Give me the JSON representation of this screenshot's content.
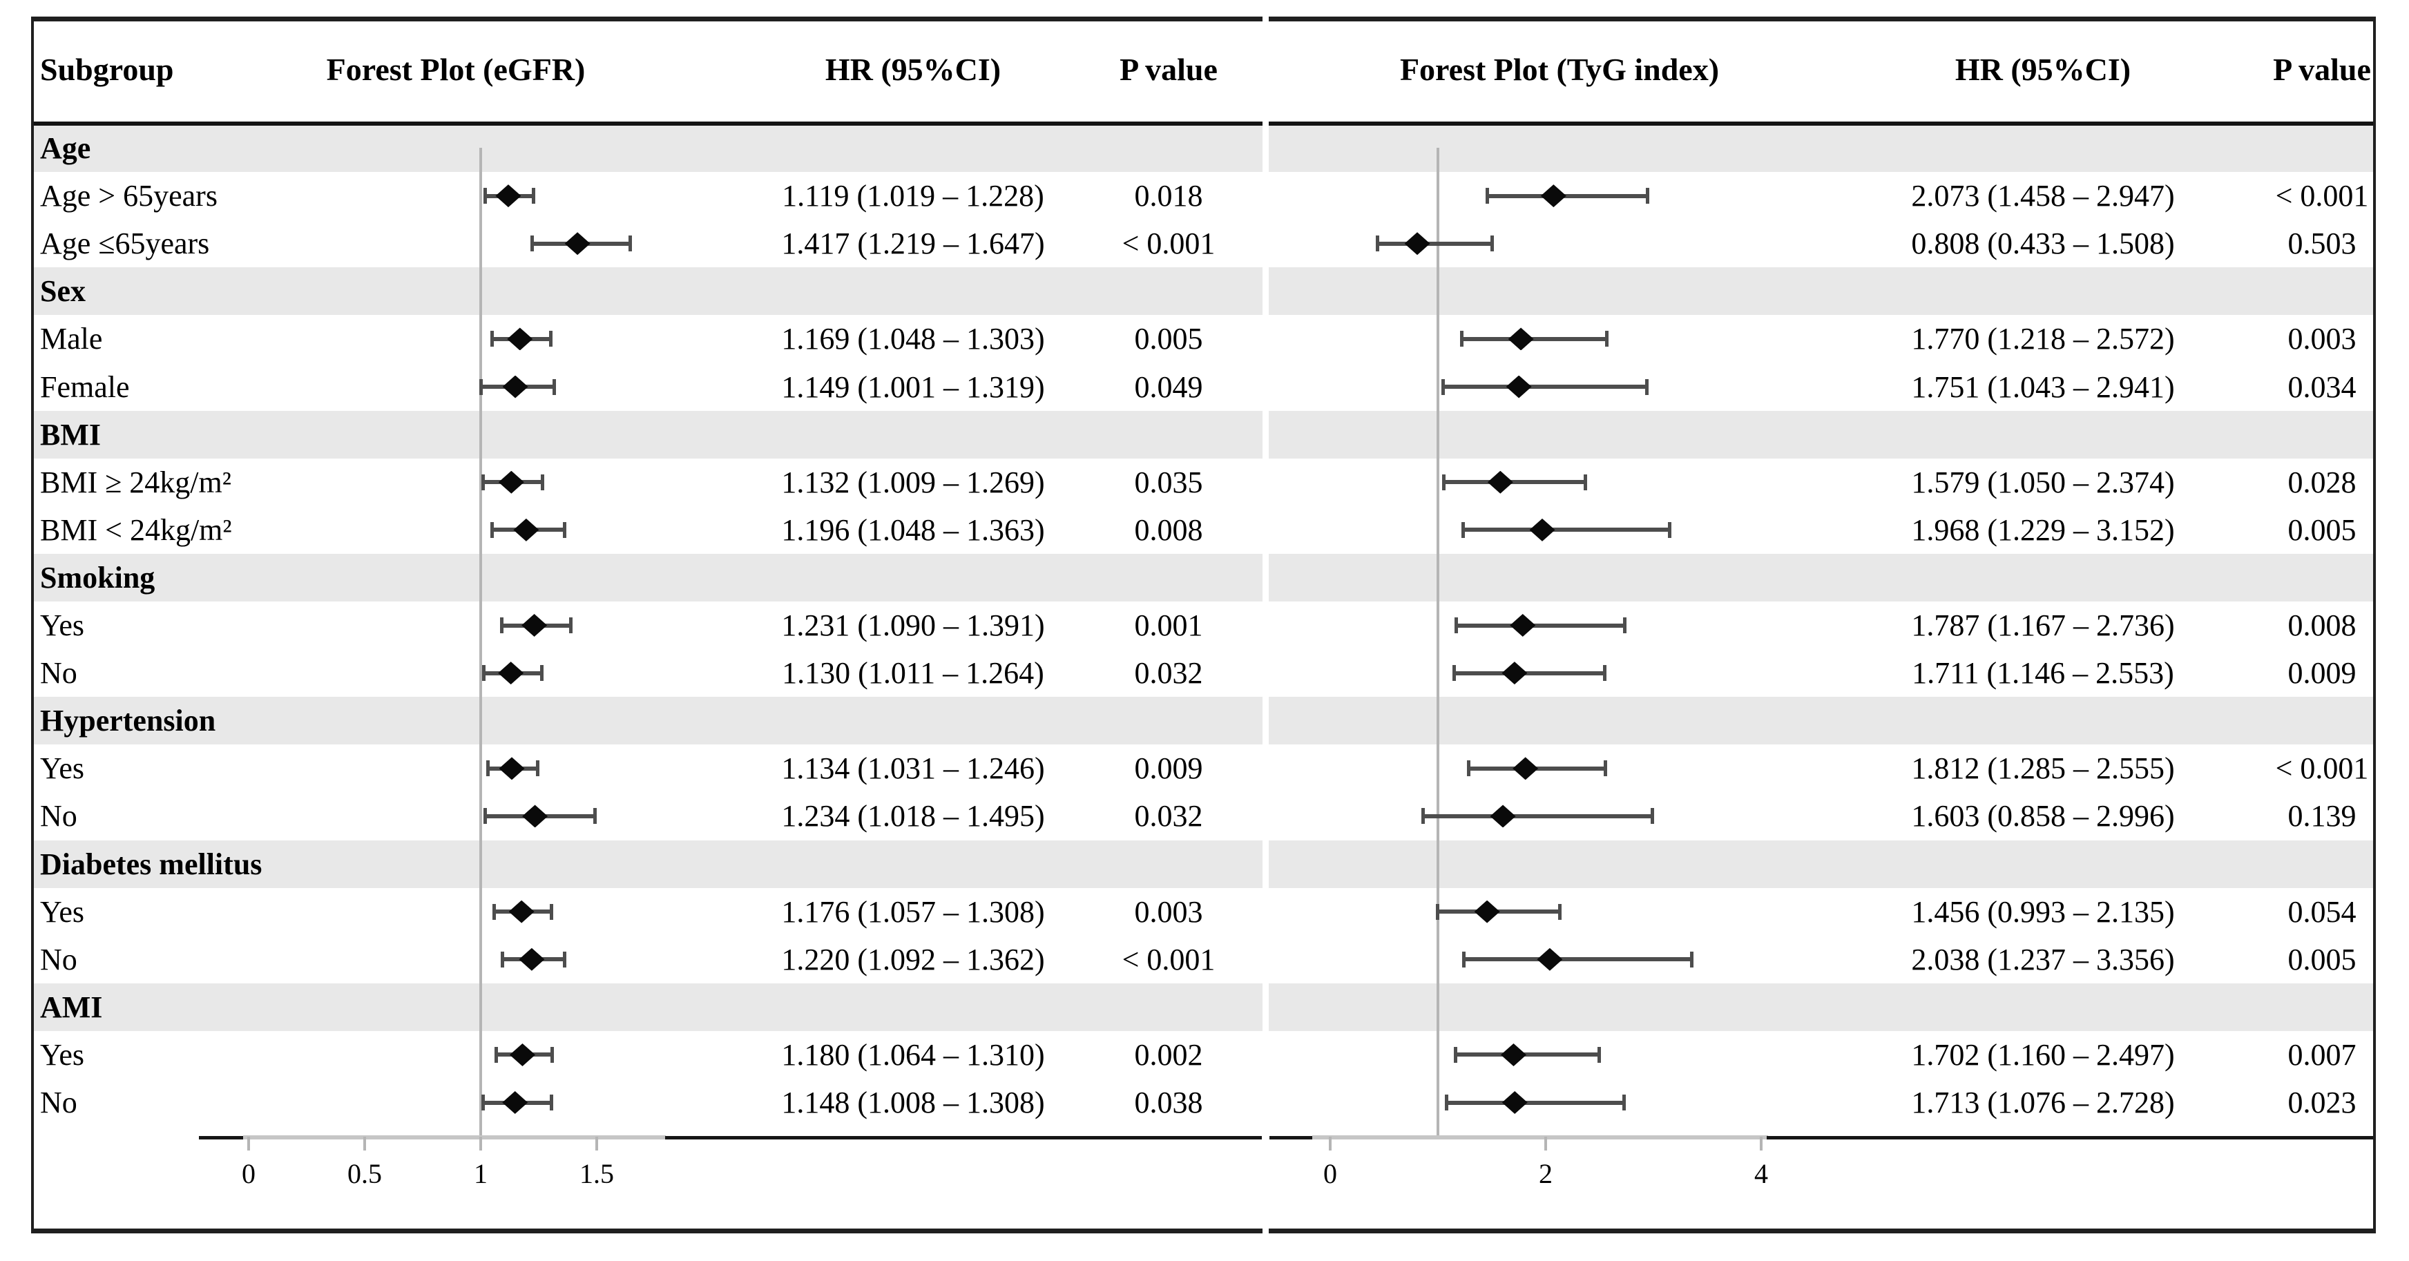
{
  "header": {
    "subgroup": "Subgroup",
    "egfr_title": "Forest Plot (eGFR)",
    "hr_left": "HR (95%CI)",
    "p_left": "P value",
    "tyg_title": "Forest Plot (TyG index)",
    "hr_right": "HR (95%CI)",
    "p_right": "P value"
  },
  "axes": {
    "egfr": {
      "ticks": [
        {
          "label": "0",
          "value": 0
        },
        {
          "label": "0.5",
          "value": 0.5
        },
        {
          "label": "1",
          "value": 1
        },
        {
          "label": "1.5",
          "value": 1.5
        }
      ],
      "ref_line": 1
    },
    "tyg": {
      "ticks": [
        {
          "label": "0",
          "value": 0
        },
        {
          "label": "2",
          "value": 2
        },
        {
          "label": "4",
          "value": 4
        }
      ],
      "ref_line": 1
    }
  },
  "sections": [
    {
      "label": "Age",
      "rows": [
        {
          "label": "Age > 65years",
          "egfr": {
            "hr": 1.119,
            "lo": 1.019,
            "hi": 1.228,
            "text": "1.119 (1.019 – 1.228)",
            "p": "0.018"
          },
          "tyg": {
            "hr": 2.073,
            "lo": 1.458,
            "hi": 2.947,
            "text": "2.073 (1.458 – 2.947)",
            "p": "< 0.001"
          }
        },
        {
          "label": "Age ≤65years",
          "egfr": {
            "hr": 1.417,
            "lo": 1.219,
            "hi": 1.647,
            "text": "1.417 (1.219 – 1.647)",
            "p": "< 0.001"
          },
          "tyg": {
            "hr": 0.808,
            "lo": 0.433,
            "hi": 1.508,
            "text": "0.808 (0.433 – 1.508)",
            "p": "0.503"
          }
        }
      ]
    },
    {
      "label": "Sex",
      "rows": [
        {
          "label": "Male",
          "egfr": {
            "hr": 1.169,
            "lo": 1.048,
            "hi": 1.303,
            "text": "1.169 (1.048 – 1.303)",
            "p": "0.005"
          },
          "tyg": {
            "hr": 1.77,
            "lo": 1.218,
            "hi": 2.572,
            "text": "1.770 (1.218 – 2.572)",
            "p": "0.003"
          }
        },
        {
          "label": "Female",
          "egfr": {
            "hr": 1.149,
            "lo": 1.001,
            "hi": 1.319,
            "text": "1.149 (1.001 – 1.319)",
            "p": "0.049"
          },
          "tyg": {
            "hr": 1.751,
            "lo": 1.043,
            "hi": 2.941,
            "text": "1.751 (1.043 – 2.941)",
            "p": "0.034"
          }
        }
      ]
    },
    {
      "label": "BMI",
      "rows": [
        {
          "label": "BMI ≥ 24kg/m²",
          "egfr": {
            "hr": 1.132,
            "lo": 1.009,
            "hi": 1.269,
            "text": "1.132 (1.009 – 1.269)",
            "p": "0.035"
          },
          "tyg": {
            "hr": 1.579,
            "lo": 1.05,
            "hi": 2.374,
            "text": "1.579 (1.050 – 2.374)",
            "p": "0.028"
          }
        },
        {
          "label": "BMI < 24kg/m²",
          "egfr": {
            "hr": 1.196,
            "lo": 1.048,
            "hi": 1.363,
            "text": "1.196 (1.048 – 1.363)",
            "p": "0.008"
          },
          "tyg": {
            "hr": 1.968,
            "lo": 1.229,
            "hi": 3.152,
            "text": "1.968 (1.229 – 3.152)",
            "p": "0.005"
          }
        }
      ]
    },
    {
      "label": "Smoking",
      "rows": [
        {
          "label": "Yes",
          "egfr": {
            "hr": 1.231,
            "lo": 1.09,
            "hi": 1.391,
            "text": "1.231 (1.090 – 1.391)",
            "p": "0.001"
          },
          "tyg": {
            "hr": 1.787,
            "lo": 1.167,
            "hi": 2.736,
            "text": "1.787 (1.167 – 2.736)",
            "p": "0.008"
          }
        },
        {
          "label": "No",
          "egfr": {
            "hr": 1.13,
            "lo": 1.011,
            "hi": 1.264,
            "text": "1.130 (1.011 – 1.264)",
            "p": "0.032"
          },
          "tyg": {
            "hr": 1.711,
            "lo": 1.146,
            "hi": 2.553,
            "text": "1.711 (1.146 – 2.553)",
            "p": "0.009"
          }
        }
      ]
    },
    {
      "label": "Hypertension",
      "rows": [
        {
          "label": "Yes",
          "egfr": {
            "hr": 1.134,
            "lo": 1.031,
            "hi": 1.246,
            "text": "1.134 (1.031 – 1.246)",
            "p": "0.009"
          },
          "tyg": {
            "hr": 1.812,
            "lo": 1.285,
            "hi": 2.555,
            "text": "1.812 (1.285 – 2.555)",
            "p": "< 0.001"
          }
        },
        {
          "label": "No",
          "egfr": {
            "hr": 1.234,
            "lo": 1.018,
            "hi": 1.495,
            "text": "1.234 (1.018 – 1.495)",
            "p": "0.032"
          },
          "tyg": {
            "hr": 1.603,
            "lo": 0.858,
            "hi": 2.996,
            "text": "1.603 (0.858 – 2.996)",
            "p": "0.139"
          }
        }
      ]
    },
    {
      "label": "Diabetes mellitus",
      "rows": [
        {
          "label": "Yes",
          "egfr": {
            "hr": 1.176,
            "lo": 1.057,
            "hi": 1.308,
            "text": "1.176 (1.057 – 1.308)",
            "p": "0.003"
          },
          "tyg": {
            "hr": 1.456,
            "lo": 0.993,
            "hi": 2.135,
            "text": "1.456 (0.993 – 2.135)",
            "p": "0.054"
          }
        },
        {
          "label": "No",
          "egfr": {
            "hr": 1.22,
            "lo": 1.092,
            "hi": 1.362,
            "text": "1.220 (1.092 – 1.362)",
            "p": "< 0.001"
          },
          "tyg": {
            "hr": 2.038,
            "lo": 1.237,
            "hi": 3.356,
            "text": "2.038 (1.237 – 3.356)",
            "p": "0.005"
          }
        }
      ]
    },
    {
      "label": "AMI",
      "rows": [
        {
          "label": "Yes",
          "egfr": {
            "hr": 1.18,
            "lo": 1.064,
            "hi": 1.31,
            "text": "1.180 (1.064 – 1.310)",
            "p": "0.002"
          },
          "tyg": {
            "hr": 1.702,
            "lo": 1.16,
            "hi": 2.497,
            "text": "1.702 (1.160 – 2.497)",
            "p": "0.007"
          }
        },
        {
          "label": "No",
          "egfr": {
            "hr": 1.148,
            "lo": 1.008,
            "hi": 1.308,
            "text": "1.148 (1.008 – 1.308)",
            "p": "0.038"
          },
          "tyg": {
            "hr": 1.713,
            "lo": 1.076,
            "hi": 2.728,
            "text": "1.713 (1.076 – 2.728)",
            "p": "0.023"
          }
        }
      ]
    }
  ],
  "chart_data": [
    {
      "type": "forest",
      "title": "Forest Plot (eGFR)",
      "ref_line": 1,
      "xticks": [
        0,
        0.5,
        1,
        1.5
      ],
      "xlim": [
        -0.2,
        2.0
      ],
      "groups": [
        "Age",
        "Sex",
        "BMI",
        "Smoking",
        "Hypertension",
        "Diabetes mellitus",
        "AMI"
      ],
      "categories": [
        "Age > 65years",
        "Age ≤65years",
        "Male",
        "Female",
        "BMI ≥ 24kg/m²",
        "BMI < 24kg/m²",
        "Smoking Yes",
        "Smoking No",
        "Hypertension Yes",
        "Hypertension No",
        "Diabetes mellitus Yes",
        "Diabetes mellitus No",
        "AMI Yes",
        "AMI No"
      ],
      "hr": [
        1.119,
        1.417,
        1.169,
        1.149,
        1.132,
        1.196,
        1.231,
        1.13,
        1.134,
        1.234,
        1.176,
        1.22,
        1.18,
        1.148
      ],
      "ci_low": [
        1.019,
        1.219,
        1.048,
        1.001,
        1.009,
        1.048,
        1.09,
        1.011,
        1.031,
        1.018,
        1.057,
        1.092,
        1.064,
        1.008
      ],
      "ci_high": [
        1.228,
        1.647,
        1.303,
        1.319,
        1.269,
        1.363,
        1.391,
        1.264,
        1.246,
        1.495,
        1.308,
        1.362,
        1.31,
        1.308
      ],
      "p_values": [
        "0.018",
        "< 0.001",
        "0.005",
        "0.049",
        "0.035",
        "0.008",
        "0.001",
        "0.032",
        "0.009",
        "0.032",
        "0.003",
        "< 0.001",
        "0.002",
        "0.038"
      ]
    },
    {
      "type": "forest",
      "title": "Forest Plot (TyG index)",
      "ref_line": 1,
      "xticks": [
        0,
        2,
        4
      ],
      "xlim": [
        -0.55,
        5.2
      ],
      "groups": [
        "Age",
        "Sex",
        "BMI",
        "Smoking",
        "Hypertension",
        "Diabetes mellitus",
        "AMI"
      ],
      "categories": [
        "Age > 65years",
        "Age ≤65years",
        "Male",
        "Female",
        "BMI ≥ 24kg/m²",
        "BMI < 24kg/m²",
        "Smoking Yes",
        "Smoking No",
        "Hypertension Yes",
        "Hypertension No",
        "Diabetes mellitus Yes",
        "Diabetes mellitus No",
        "AMI Yes",
        "AMI No"
      ],
      "hr": [
        2.073,
        0.808,
        1.77,
        1.751,
        1.579,
        1.968,
        1.787,
        1.711,
        1.812,
        1.603,
        1.456,
        2.038,
        1.702,
        1.713
      ],
      "ci_low": [
        1.458,
        0.433,
        1.218,
        1.043,
        1.05,
        1.229,
        1.167,
        1.146,
        1.285,
        0.858,
        0.993,
        1.237,
        1.16,
        1.076
      ],
      "ci_high": [
        2.947,
        1.508,
        2.572,
        2.941,
        2.374,
        3.152,
        2.736,
        2.553,
        2.555,
        2.996,
        2.135,
        3.356,
        2.497,
        2.728
      ],
      "p_values": [
        "< 0.001",
        "0.503",
        "0.003",
        "0.034",
        "0.028",
        "0.005",
        "0.008",
        "0.009",
        "< 0.001",
        "0.139",
        "0.054",
        "0.005",
        "0.007",
        "0.023"
      ]
    }
  ]
}
